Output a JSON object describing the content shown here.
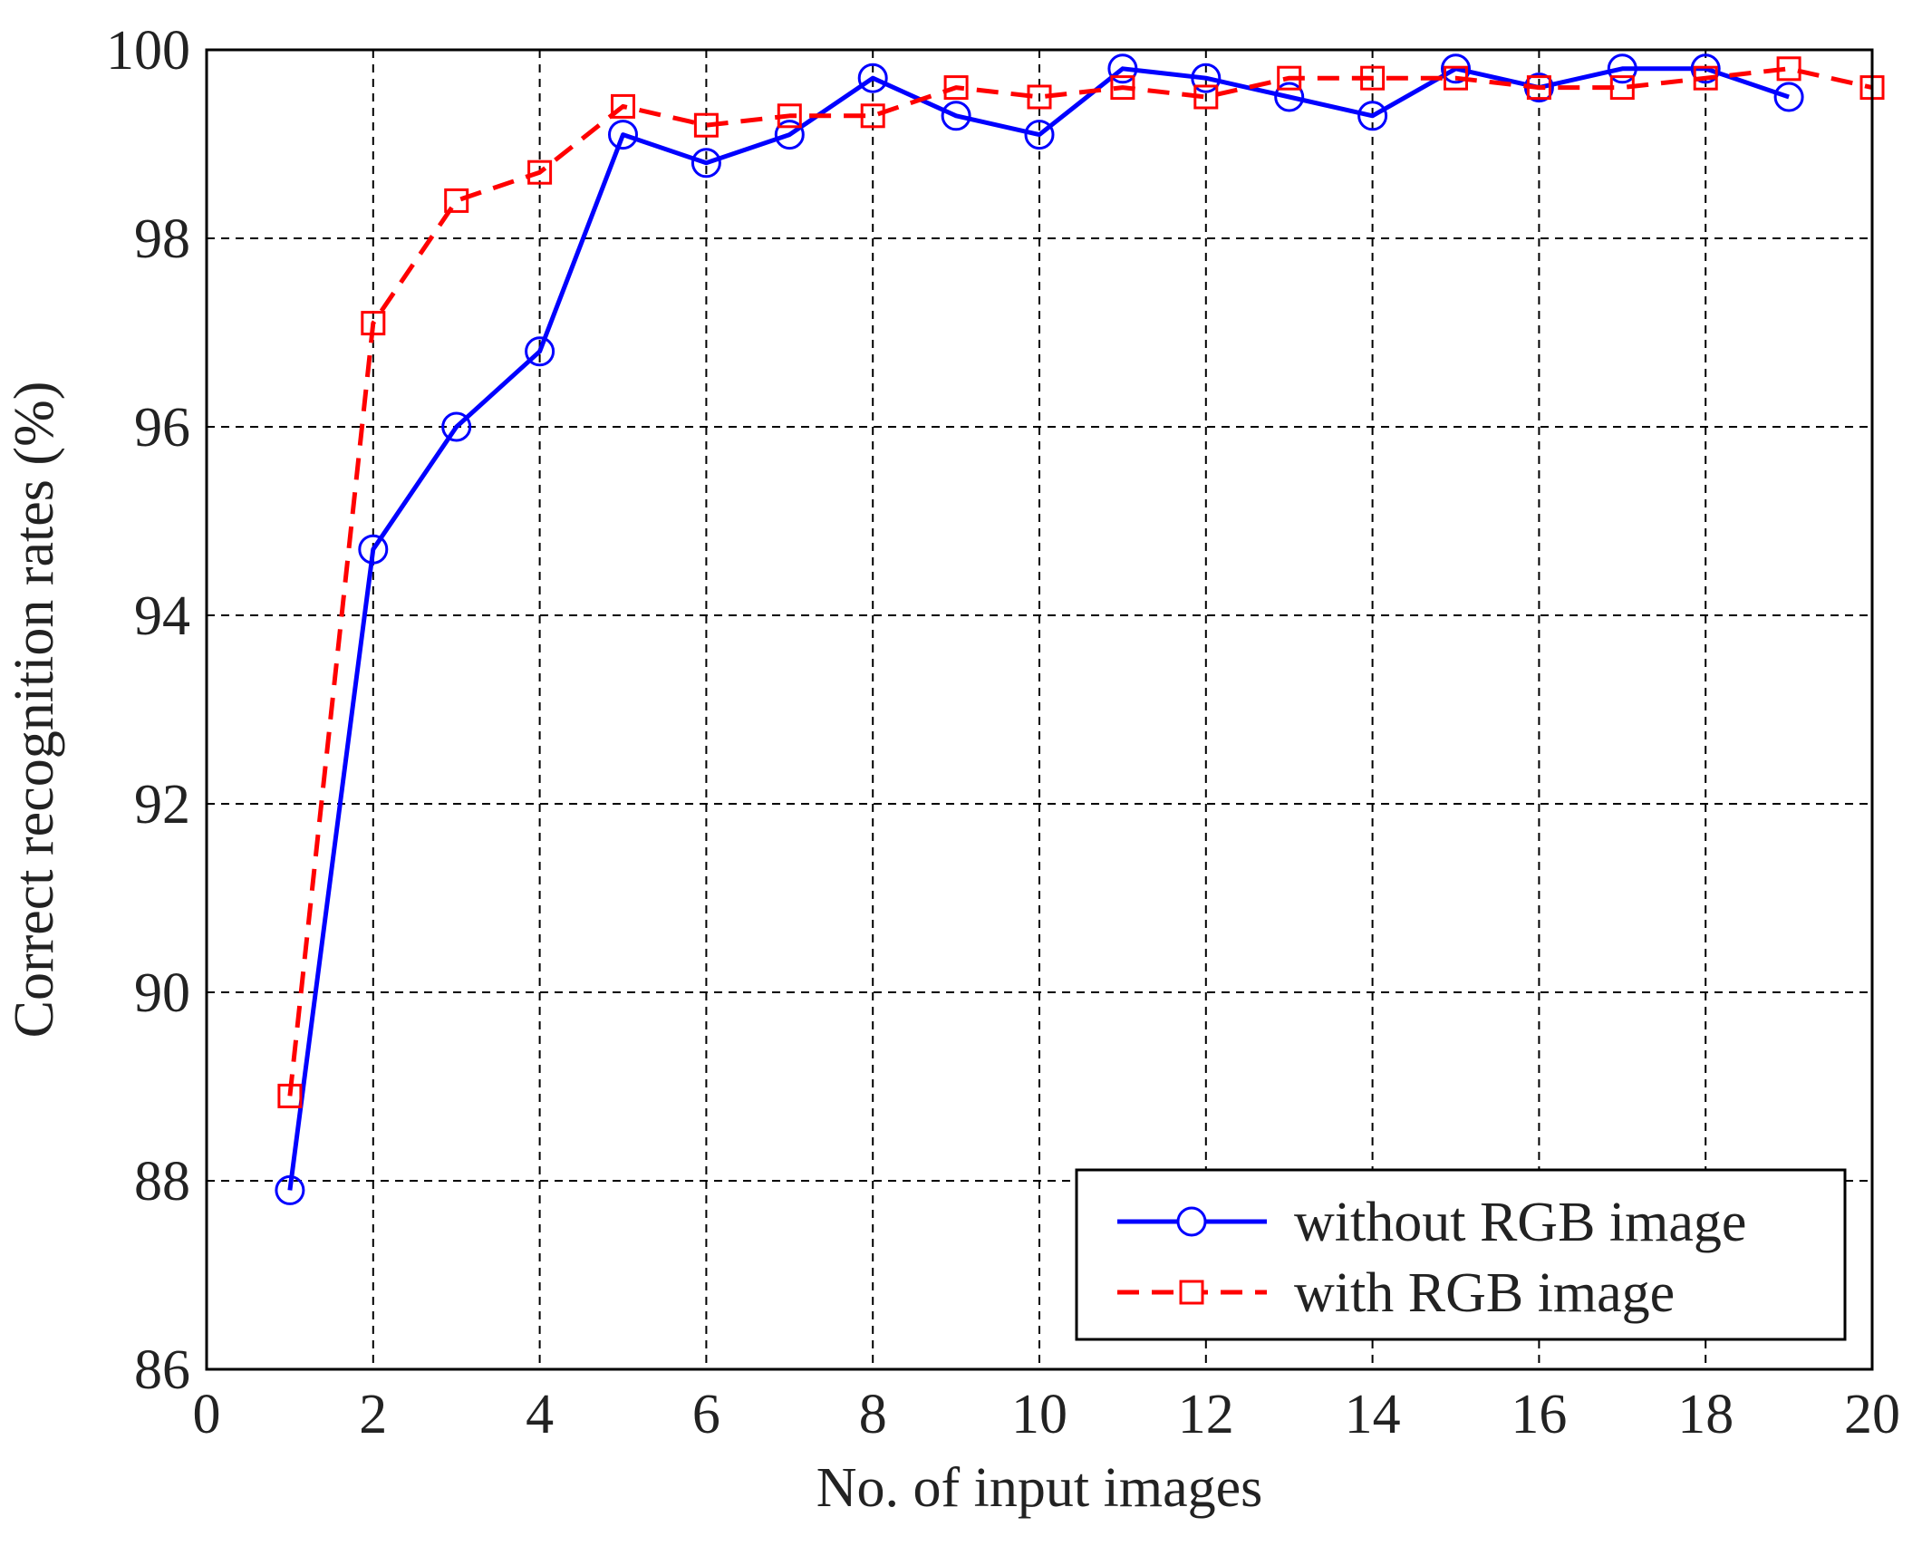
{
  "chart_data": {
    "type": "line",
    "xlabel": "No. of input images",
    "ylabel": "Correct recognition rates (%)",
    "xlim": [
      0,
      20
    ],
    "ylim": [
      86,
      100
    ],
    "xticks": [
      0,
      2,
      4,
      6,
      8,
      10,
      12,
      14,
      16,
      18,
      20
    ],
    "yticks": [
      86,
      88,
      90,
      92,
      94,
      96,
      98,
      100
    ],
    "grid": true,
    "legend_position": "bottom-right",
    "series": [
      {
        "name": "without RGB image",
        "color": "#0000ff",
        "line_style": "solid",
        "marker": "circle",
        "x": [
          1,
          2,
          3,
          4,
          5,
          6,
          7,
          8,
          9,
          10,
          11,
          12,
          13,
          14,
          15,
          16,
          17,
          18,
          19
        ],
        "y": [
          87.9,
          94.7,
          96.0,
          96.8,
          99.1,
          98.8,
          99.1,
          99.7,
          99.3,
          99.1,
          99.8,
          99.7,
          99.5,
          99.3,
          99.8,
          99.6,
          99.8,
          99.8,
          99.5
        ]
      },
      {
        "name": "with RGB image",
        "color": "#ff0000",
        "line_style": "dashed",
        "marker": "square",
        "x": [
          1,
          2,
          3,
          4,
          5,
          6,
          7,
          8,
          9,
          10,
          11,
          12,
          13,
          14,
          15,
          16,
          17,
          18,
          19,
          20
        ],
        "y": [
          88.9,
          97.1,
          98.4,
          98.7,
          99.4,
          99.2,
          99.3,
          99.3,
          99.6,
          99.5,
          99.6,
          99.5,
          99.7,
          99.7,
          99.7,
          99.6,
          99.6,
          99.7,
          99.8,
          99.6
        ]
      }
    ]
  }
}
